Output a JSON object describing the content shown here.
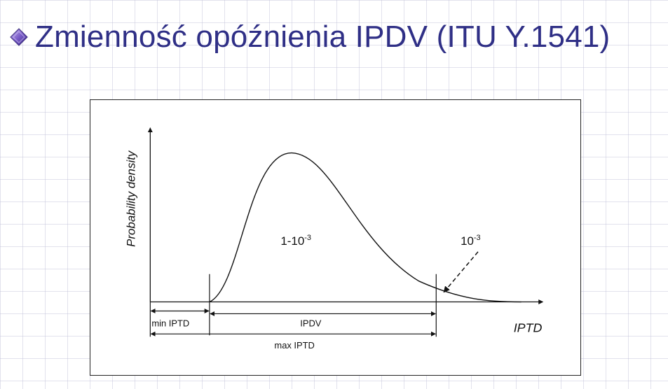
{
  "slide": {
    "title": "Zmienność opóźnienia IPDV (ITU Y.1541)",
    "bullet_icon": "diamond-bullet-icon",
    "accent_color": "#2f2f86"
  },
  "diagram": {
    "y_axis_label": "Probability density",
    "x_axis_label": "IPTD",
    "main_area_label_base": "1-10",
    "main_area_label_exp": "-3",
    "tail_label_base": "10",
    "tail_label_exp": "-3",
    "min_label": "min IPTD",
    "ipdv_label": "IPDV",
    "max_label": "max IPTD"
  }
}
